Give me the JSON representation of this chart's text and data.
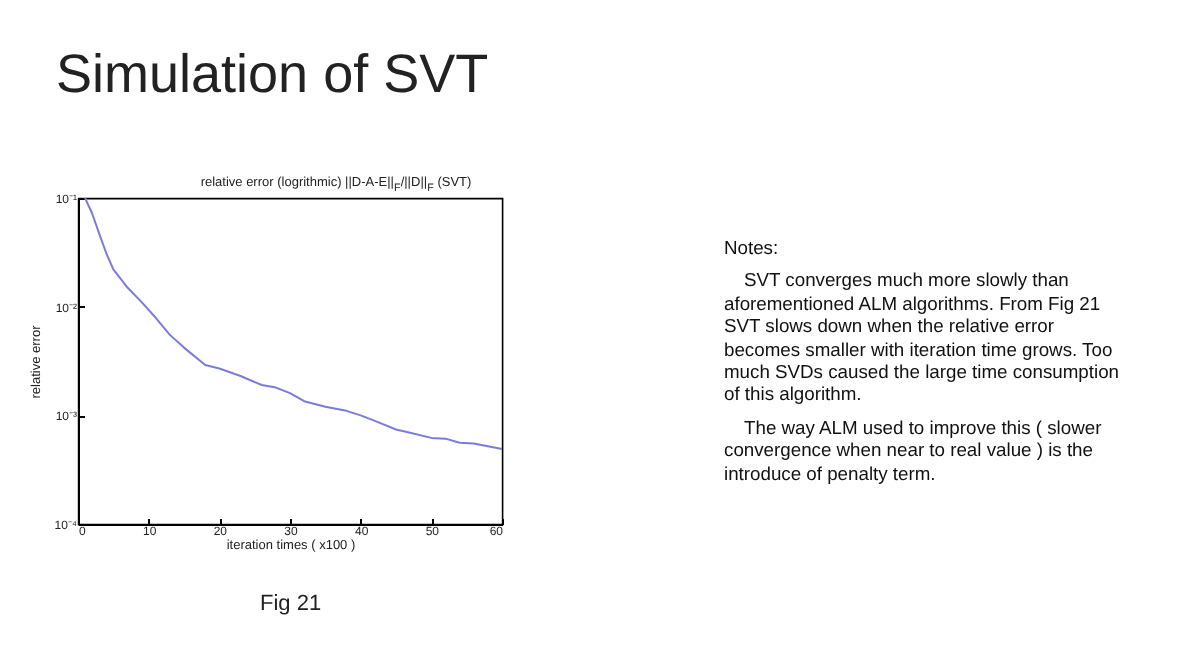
{
  "chart_data": {
    "type": "line",
    "title": "Simulation of SVT",
    "subtitle": "relative error (logrithmic) ||D-A-E||$_{F}$/||D||$_{F}$ (SVT)",
    "xlabel": "iteration times ( x100 )",
    "ylabel": "relative error",
    "x": [
      1,
      2,
      3,
      4,
      5,
      7,
      9,
      11,
      13,
      15,
      18,
      20,
      23,
      26,
      28,
      30,
      32,
      35,
      38,
      40,
      42,
      45,
      47,
      50,
      52,
      54,
      56,
      58,
      60
    ],
    "series": [
      {
        "color": "#7b7bdc",
        "values": [
          0.1,
          0.072,
          0.047,
          0.031,
          0.022,
          0.015,
          0.011,
          0.0079,
          0.0055,
          0.0042,
          0.0029,
          0.0027,
          0.0023,
          0.0019,
          0.0018,
          0.0016,
          0.00135,
          0.0012,
          0.0011,
          0.001,
          0.00089,
          0.00074,
          0.00069,
          0.00062,
          0.00061,
          0.00056,
          0.00055,
          0.00052,
          0.00049
        ]
      }
    ],
    "xlim": [
      0,
      60
    ],
    "xticks": [
      0,
      10,
      20,
      30,
      40,
      50,
      60
    ],
    "ylim": [
      0.0001,
      0.1
    ],
    "yticks": [
      {
        "value": 0.0001,
        "label": "10⁻⁴"
      },
      {
        "value": 0.001,
        "label": "10⁻³"
      },
      {
        "value": 0.01,
        "label": "10⁻²"
      },
      {
        "value": 0.1,
        "label": "10⁻¹"
      }
    ],
    "log": "y",
    "grid": false,
    "marker": "none",
    "line_style": "solid",
    "annotations": [
      "Fig 21",
      "Notes:",
      "SVT converges much more slowly than aforementioned ALM algorithms. From Fig 21 SVT slows down when the relative error becomes smaller with iteration time grows. Too much SVDs caused the large time consumption of this algorithm.",
      "The way ALM used to improve this ( slower convergence when near to real value ) is the introduce of penalty term."
    ]
  }
}
